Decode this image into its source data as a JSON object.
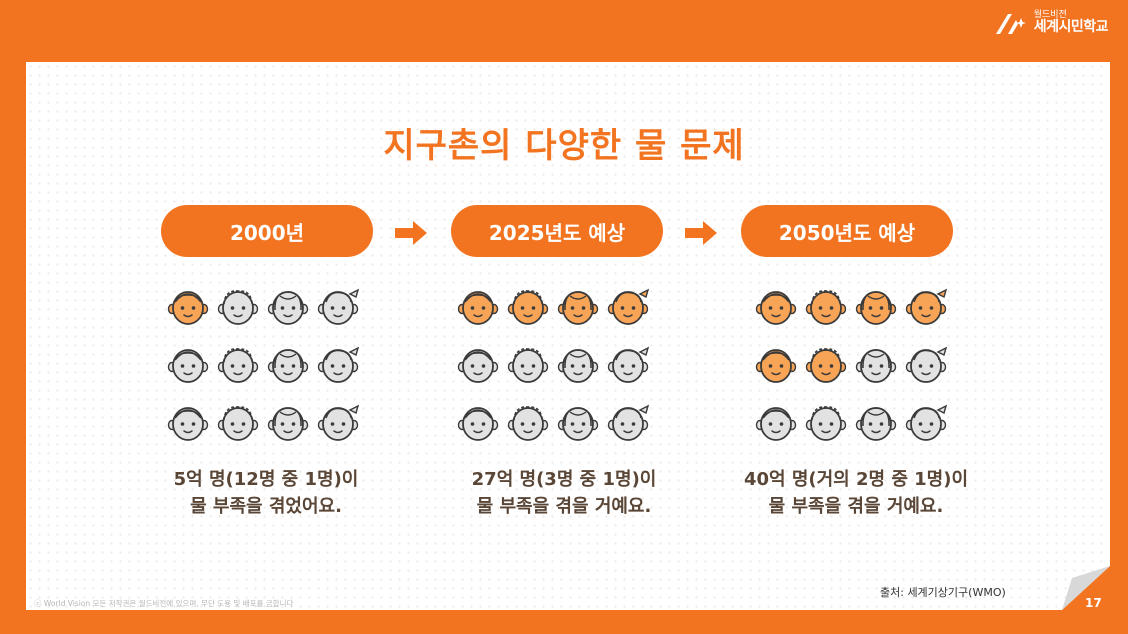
{
  "brand": {
    "line1": "월드비전",
    "line2": "세계시민학교"
  },
  "title": "지구촌의 다양한 물 문제",
  "columns": [
    {
      "label": "2000년",
      "line1": "5억 명(12명 중 1명)이",
      "line2": "물 부족을 겪었어요.",
      "highlighted_faces": 1,
      "total_faces": 12
    },
    {
      "label": "2025년도 예상",
      "line1": "27억 명(3명 중 1명)이",
      "line2": "물 부족을 겪을 거예요.",
      "highlighted_faces": 4,
      "total_faces": 12
    },
    {
      "label": "2050년도 예상",
      "line1": "40억 명(거의 2명 중 1명)이",
      "line2": "물 부족을 겪을 거예요.",
      "highlighted_faces": 6,
      "total_faces": 12
    }
  ],
  "source": "출처: 세계기상기구(WMO)",
  "copyright": "ⓒ World Vision 모든 저작권은 월드비전에 있으며, 무단 도용 및 배포를 금합니다",
  "page_number": "17",
  "colors": {
    "accent": "#F27421",
    "face_orange": "#F8A456",
    "face_gray": "#E2E2E2",
    "text_brown": "#5A4636"
  },
  "icons": {
    "arrow": "right-arrow-icon",
    "logo": "world-vision-logo-icon",
    "face": "face-icon"
  }
}
